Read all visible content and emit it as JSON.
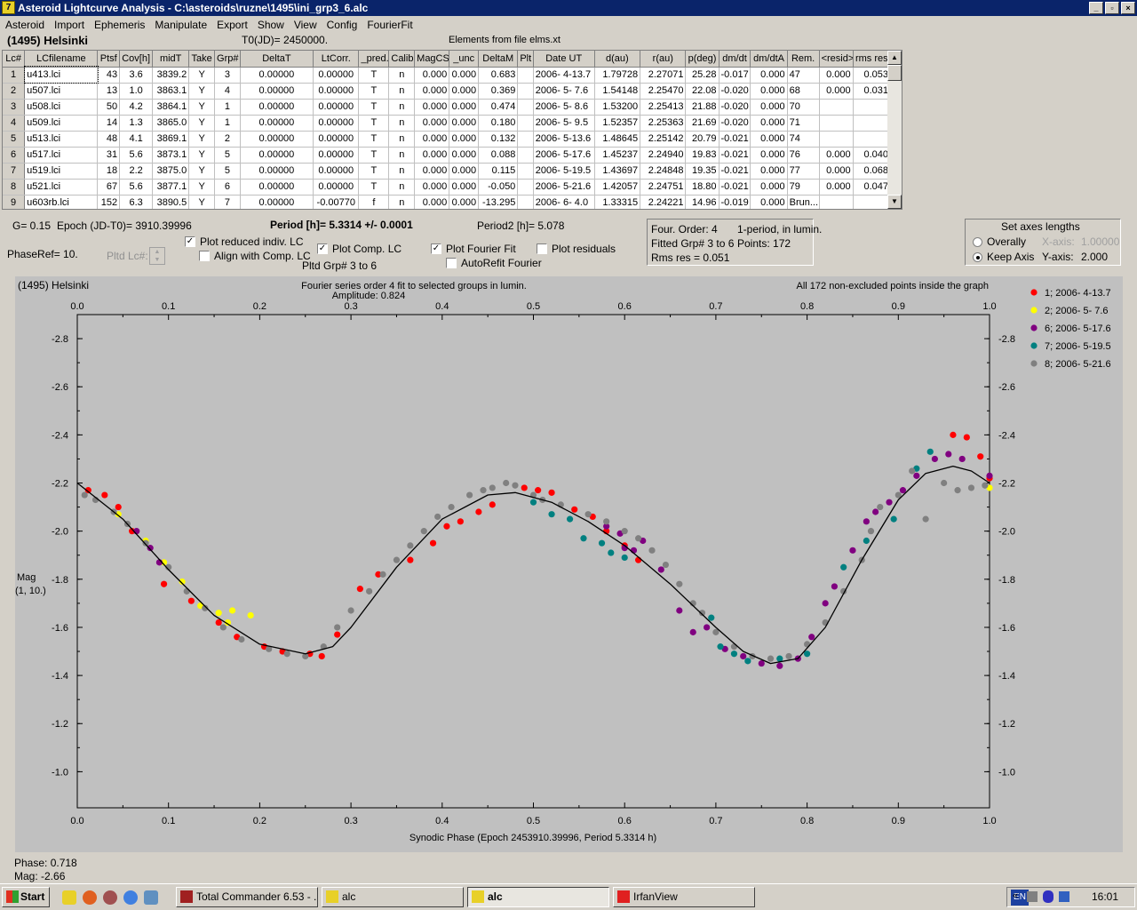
{
  "window": {
    "title": "Asteroid Lightcurve Analysis - C:\\asteroids\\ruzne\\1495\\ini_grp3_6.alc",
    "icon_char": "7"
  },
  "menu": [
    "Asteroid",
    "Import",
    "Ephemeris",
    "Manipulate",
    "Export",
    "Show",
    "View",
    "Config",
    "FourierFit"
  ],
  "info": {
    "asteroid": "(1495) Helsinki",
    "t0": "T0(JD)= 2450000.",
    "elements": "Elements from file elms.xt"
  },
  "table": {
    "headers": [
      "Lc#",
      "LCfilename",
      "Ptsf",
      "Cov[h]",
      "midT",
      "Take",
      "Grp#",
      "DeltaT",
      "LtCorr.",
      "_pred.",
      "Calib.",
      "MagCS",
      "_unc",
      "DeltaM",
      "Plt",
      "Date UT",
      "d(au)",
      "r(au)",
      "p(deg)",
      "dm/dt",
      "dm/dtA",
      "Rem.",
      "<resid>",
      "rms res"
    ],
    "rows": [
      [
        "1",
        "u413.lci",
        "43",
        "3.6",
        "3839.2",
        "Y",
        "3",
        "0.00000",
        "0.00000",
        "T",
        "n",
        "0.000",
        "0.000",
        "0.683",
        "",
        "2006- 4-13.7",
        "1.79728",
        "2.27071",
        "25.28",
        "-0.017",
        "0.000",
        "47",
        "0.000",
        "0.053"
      ],
      [
        "2",
        "u507.lci",
        "13",
        "1.0",
        "3863.1",
        "Y",
        "4",
        "0.00000",
        "0.00000",
        "T",
        "n",
        "0.000",
        "0.000",
        "0.369",
        "",
        "2006- 5- 7.6",
        "1.54148",
        "2.25470",
        "22.08",
        "-0.020",
        "0.000",
        "68",
        "0.000",
        "0.031"
      ],
      [
        "3",
        "u508.lci",
        "50",
        "4.2",
        "3864.1",
        "Y",
        "1",
        "0.00000",
        "0.00000",
        "T",
        "n",
        "0.000",
        "0.000",
        "0.474",
        "",
        "2006- 5- 8.6",
        "1.53200",
        "2.25413",
        "21.88",
        "-0.020",
        "0.000",
        "70",
        "",
        ""
      ],
      [
        "4",
        "u509.lci",
        "14",
        "1.3",
        "3865.0",
        "Y",
        "1",
        "0.00000",
        "0.00000",
        "T",
        "n",
        "0.000",
        "0.000",
        "0.180",
        "",
        "2006- 5- 9.5",
        "1.52357",
        "2.25363",
        "21.69",
        "-0.020",
        "0.000",
        "71",
        "",
        ""
      ],
      [
        "5",
        "u513.lci",
        "48",
        "4.1",
        "3869.1",
        "Y",
        "2",
        "0.00000",
        "0.00000",
        "T",
        "n",
        "0.000",
        "0.000",
        "0.132",
        "",
        "2006- 5-13.6",
        "1.48645",
        "2.25142",
        "20.79",
        "-0.021",
        "0.000",
        "74",
        "",
        ""
      ],
      [
        "6",
        "u517.lci",
        "31",
        "5.6",
        "3873.1",
        "Y",
        "5",
        "0.00000",
        "0.00000",
        "T",
        "n",
        "0.000",
        "0.000",
        "0.088",
        "",
        "2006- 5-17.6",
        "1.45237",
        "2.24940",
        "19.83",
        "-0.021",
        "0.000",
        "76",
        "0.000",
        "0.040"
      ],
      [
        "7",
        "u519.lci",
        "18",
        "2.2",
        "3875.0",
        "Y",
        "5",
        "0.00000",
        "0.00000",
        "T",
        "n",
        "0.000",
        "0.000",
        "0.115",
        "",
        "2006- 5-19.5",
        "1.43697",
        "2.24848",
        "19.35",
        "-0.021",
        "0.000",
        "77",
        "0.000",
        "0.068"
      ],
      [
        "8",
        "u521.lci",
        "67",
        "5.6",
        "3877.1",
        "Y",
        "6",
        "0.00000",
        "0.00000",
        "T",
        "n",
        "0.000",
        "0.000",
        "-0.050",
        "",
        "2006- 5-21.6",
        "1.42057",
        "2.24751",
        "18.80",
        "-0.021",
        "0.000",
        "79",
        "0.000",
        "0.047"
      ],
      [
        "9",
        "u603rb.lci",
        "152",
        "6.3",
        "3890.5",
        "Y",
        "7",
        "0.00000",
        "-0.00770",
        "f",
        "n",
        "0.000",
        "0.000",
        "-13.295",
        "",
        "2006- 6- 4.0",
        "1.33315",
        "2.24221",
        "14.96",
        "-0.019",
        "0.000",
        "Brun...",
        "",
        ""
      ]
    ]
  },
  "params": {
    "g": "G= 0.15",
    "epoch": "Epoch (JD-T0)= 3910.39996",
    "period": "Period [h]= 5.3314 +/- 0.0001",
    "period2": "Period2 [h]= 5.078",
    "phaseref": "PhaseRef= 10.",
    "pltd_lc": "Pltd Lc#:",
    "pltd_grp": "Pltd Grp#  3  to  6"
  },
  "checks": {
    "reduced": {
      "label": "Plot reduced indiv. LC",
      "checked": true
    },
    "align": {
      "label": "Align with Comp. LC",
      "checked": false
    },
    "comp": {
      "label": "Plot Comp. LC",
      "checked": true
    },
    "fourier": {
      "label": "Plot Fourier Fit",
      "checked": true
    },
    "autorefit": {
      "label": "AutoRefit Fourier",
      "checked": false
    },
    "residuals": {
      "label": "Plot residuals",
      "checked": false
    }
  },
  "fourier_info": {
    "order": "Four. Order:  4",
    "mode": "1-period, in lumin.",
    "fitted": "Fitted Grp# 3 to 6",
    "points": "Points: 172",
    "rms": "Rms res      = 0.051"
  },
  "axes_box": {
    "title": "Set axes lengths",
    "overall": "Overally",
    "keep": "Keep Axis",
    "xaxis_label": "X-axis:",
    "xaxis_val": "1.00000",
    "yaxis_label": "Y-axis:",
    "yaxis_val": "2.000",
    "selected": "keep"
  },
  "chart_data": {
    "type": "scatter",
    "title": "Fourier series order 4 fit to selected groups in lumin.",
    "subtitle": "Amplitude: 0.824",
    "left_label": "(1495) Helsinki",
    "right_label": "All 172 non-excluded points inside the graph",
    "xlabel": "Synodic Phase (Epoch 2453910.39996, Period 5.3314 h)",
    "ylabel": "Mag",
    "ylabel2": "(1, 10.)",
    "xlim": [
      0,
      1
    ],
    "ylim": [
      -0.85,
      -2.9
    ],
    "xticks": [
      "0.0",
      "0.1",
      "0.2",
      "0.3",
      "0.4",
      "0.5",
      "0.6",
      "0.7",
      "0.8",
      "0.9",
      "1.0"
    ],
    "yticks": [
      "-2.8",
      "-2.6",
      "-2.4",
      "-2.2",
      "-2.0",
      "-1.8",
      "-1.6",
      "-1.4",
      "-1.2",
      "-1.0"
    ],
    "colors": {
      "background": "#c0c0c0",
      "curve": "#000000"
    },
    "legend_position": "right",
    "series": [
      {
        "name": "1; 2006- 4-13.7",
        "color": "#ff0000",
        "points": [
          [
            0.012,
            -2.17
          ],
          [
            0.03,
            -2.15
          ],
          [
            0.045,
            -2.1
          ],
          [
            0.06,
            -2.0
          ],
          [
            0.095,
            -1.78
          ],
          [
            0.125,
            -1.71
          ],
          [
            0.155,
            -1.62
          ],
          [
            0.175,
            -1.56
          ],
          [
            0.205,
            -1.52
          ],
          [
            0.225,
            -1.5
          ],
          [
            0.255,
            -1.49
          ],
          [
            0.268,
            -1.48
          ],
          [
            0.285,
            -1.57
          ],
          [
            0.31,
            -1.76
          ],
          [
            0.33,
            -1.82
          ],
          [
            0.365,
            -1.88
          ],
          [
            0.39,
            -1.95
          ],
          [
            0.405,
            -2.02
          ],
          [
            0.42,
            -2.04
          ],
          [
            0.44,
            -2.08
          ],
          [
            0.455,
            -2.11
          ],
          [
            0.49,
            -2.18
          ],
          [
            0.505,
            -2.17
          ],
          [
            0.52,
            -2.16
          ],
          [
            0.545,
            -2.09
          ],
          [
            0.565,
            -2.06
          ],
          [
            0.58,
            -2.0
          ],
          [
            0.6,
            -1.94
          ],
          [
            0.615,
            -1.88
          ],
          [
            0.96,
            -2.4
          ],
          [
            0.975,
            -2.39
          ],
          [
            0.99,
            -2.31
          ],
          [
            1.0,
            -2.22
          ]
        ]
      },
      {
        "name": "2; 2006- 5- 7.6",
        "color": "#ffff00",
        "points": [
          [
            0.045,
            -2.07
          ],
          [
            0.075,
            -1.96
          ],
          [
            0.095,
            -1.87
          ],
          [
            0.115,
            -1.79
          ],
          [
            0.135,
            -1.69
          ],
          [
            0.155,
            -1.66
          ],
          [
            0.165,
            -1.62
          ],
          [
            0.17,
            -1.67
          ],
          [
            0.19,
            -1.65
          ],
          [
            1.0,
            -2.18
          ]
        ]
      },
      {
        "name": "6; 2006- 5-17.6",
        "color": "#800080",
        "points": [
          [
            0.065,
            -2.0
          ],
          [
            0.08,
            -1.93
          ],
          [
            0.09,
            -1.87
          ],
          [
            0.58,
            -2.02
          ],
          [
            0.595,
            -1.99
          ],
          [
            0.6,
            -1.93
          ],
          [
            0.61,
            -1.92
          ],
          [
            0.62,
            -1.96
          ],
          [
            0.64,
            -1.84
          ],
          [
            0.66,
            -1.67
          ],
          [
            0.675,
            -1.58
          ],
          [
            0.69,
            -1.6
          ],
          [
            0.71,
            -1.51
          ],
          [
            0.73,
            -1.48
          ],
          [
            0.75,
            -1.45
          ],
          [
            0.77,
            -1.44
          ],
          [
            0.79,
            -1.47
          ],
          [
            0.805,
            -1.56
          ],
          [
            0.82,
            -1.7
          ],
          [
            0.83,
            -1.77
          ],
          [
            0.85,
            -1.92
          ],
          [
            0.865,
            -2.04
          ],
          [
            0.875,
            -2.08
          ],
          [
            0.89,
            -2.12
          ],
          [
            0.905,
            -2.17
          ],
          [
            0.92,
            -2.23
          ],
          [
            0.94,
            -2.3
          ],
          [
            0.955,
            -2.32
          ],
          [
            0.97,
            -2.3
          ],
          [
            1.0,
            -2.23
          ]
        ]
      },
      {
        "name": "7; 2006- 5-19.5",
        "color": "#008080",
        "points": [
          [
            0.5,
            -2.12
          ],
          [
            0.52,
            -2.07
          ],
          [
            0.54,
            -2.05
          ],
          [
            0.555,
            -1.97
          ],
          [
            0.575,
            -1.95
          ],
          [
            0.585,
            -1.91
          ],
          [
            0.6,
            -1.89
          ],
          [
            0.695,
            -1.64
          ],
          [
            0.705,
            -1.52
          ],
          [
            0.72,
            -1.49
          ],
          [
            0.735,
            -1.46
          ],
          [
            0.77,
            -1.47
          ],
          [
            0.8,
            -1.49
          ],
          [
            0.84,
            -1.85
          ],
          [
            0.865,
            -1.96
          ],
          [
            0.895,
            -2.05
          ],
          [
            0.92,
            -2.26
          ],
          [
            0.935,
            -2.33
          ]
        ]
      },
      {
        "name": "8; 2006- 5-21.6",
        "color": "#808080",
        "points": [
          [
            0.008,
            -2.15
          ],
          [
            0.02,
            -2.13
          ],
          [
            0.04,
            -2.08
          ],
          [
            0.055,
            -2.03
          ],
          [
            0.075,
            -1.95
          ],
          [
            0.1,
            -1.85
          ],
          [
            0.12,
            -1.75
          ],
          [
            0.14,
            -1.68
          ],
          [
            0.16,
            -1.6
          ],
          [
            0.18,
            -1.55
          ],
          [
            0.21,
            -1.51
          ],
          [
            0.23,
            -1.49
          ],
          [
            0.25,
            -1.48
          ],
          [
            0.27,
            -1.52
          ],
          [
            0.285,
            -1.6
          ],
          [
            0.3,
            -1.67
          ],
          [
            0.32,
            -1.75
          ],
          [
            0.335,
            -1.82
          ],
          [
            0.35,
            -1.88
          ],
          [
            0.365,
            -1.94
          ],
          [
            0.38,
            -2.0
          ],
          [
            0.395,
            -2.06
          ],
          [
            0.41,
            -2.1
          ],
          [
            0.43,
            -2.15
          ],
          [
            0.445,
            -2.17
          ],
          [
            0.455,
            -2.18
          ],
          [
            0.47,
            -2.2
          ],
          [
            0.48,
            -2.19
          ],
          [
            0.5,
            -2.15
          ],
          [
            0.51,
            -2.13
          ],
          [
            0.53,
            -2.11
          ],
          [
            0.56,
            -2.07
          ],
          [
            0.58,
            -2.04
          ],
          [
            0.6,
            -2.0
          ],
          [
            0.615,
            -1.97
          ],
          [
            0.63,
            -1.92
          ],
          [
            0.645,
            -1.86
          ],
          [
            0.66,
            -1.78
          ],
          [
            0.675,
            -1.7
          ],
          [
            0.685,
            -1.66
          ],
          [
            0.7,
            -1.58
          ],
          [
            0.72,
            -1.52
          ],
          [
            0.74,
            -1.48
          ],
          [
            0.76,
            -1.47
          ],
          [
            0.78,
            -1.48
          ],
          [
            0.8,
            -1.53
          ],
          [
            0.82,
            -1.62
          ],
          [
            0.84,
            -1.75
          ],
          [
            0.86,
            -1.88
          ],
          [
            0.87,
            -2.0
          ],
          [
            0.88,
            -2.1
          ],
          [
            0.9,
            -2.15
          ],
          [
            0.915,
            -2.25
          ],
          [
            0.93,
            -2.05
          ],
          [
            0.95,
            -2.2
          ],
          [
            0.965,
            -2.17
          ],
          [
            0.98,
            -2.18
          ],
          [
            0.995,
            -2.19
          ]
        ]
      }
    ]
  },
  "status": {
    "phase": "Phase: 0.718",
    "mag": "Mag:   -2.66"
  },
  "taskbar": {
    "start": "Start",
    "items": [
      {
        "label": "Total Commander 6.53 - ...",
        "active": false
      },
      {
        "label": "alc",
        "active": false
      },
      {
        "label": "alc",
        "active": true
      },
      {
        "label": "IrfanView",
        "active": false
      }
    ],
    "lang": "EN",
    "time": "16:01"
  }
}
